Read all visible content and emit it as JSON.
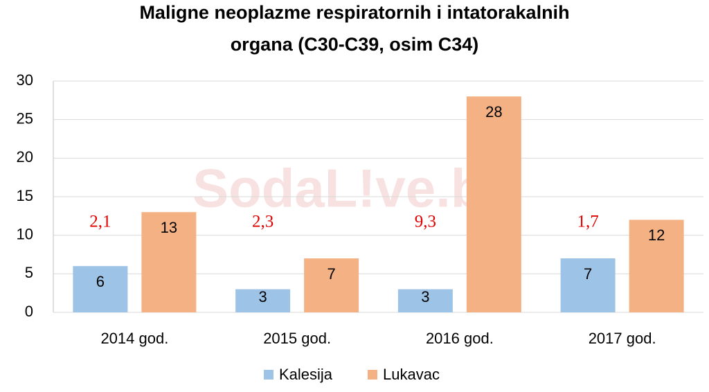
{
  "chart_data": {
    "type": "bar",
    "title": [
      "Maligne neoplazme respiratornih i intatorakalnih",
      "organa (C30-C39, osim C34)"
    ],
    "categories": [
      "2014 god.",
      "2015 god.",
      "2016 god.",
      "2017 god."
    ],
    "series": [
      {
        "name": "Kalesija",
        "color": "#9dc3e6",
        "values": [
          6,
          3,
          3,
          7
        ]
      },
      {
        "name": "Lukavac",
        "color": "#f4b183",
        "values": [
          13,
          7,
          28,
          12
        ]
      }
    ],
    "annotations": [
      "2,1",
      "2,3",
      "9,3",
      "1,7"
    ],
    "watermark": "SodaL!ve.ba",
    "ylim": [
      0,
      30
    ],
    "yticks": [
      0,
      5,
      10,
      15,
      20,
      25,
      30
    ],
    "grid": true,
    "legend": "bottom"
  }
}
